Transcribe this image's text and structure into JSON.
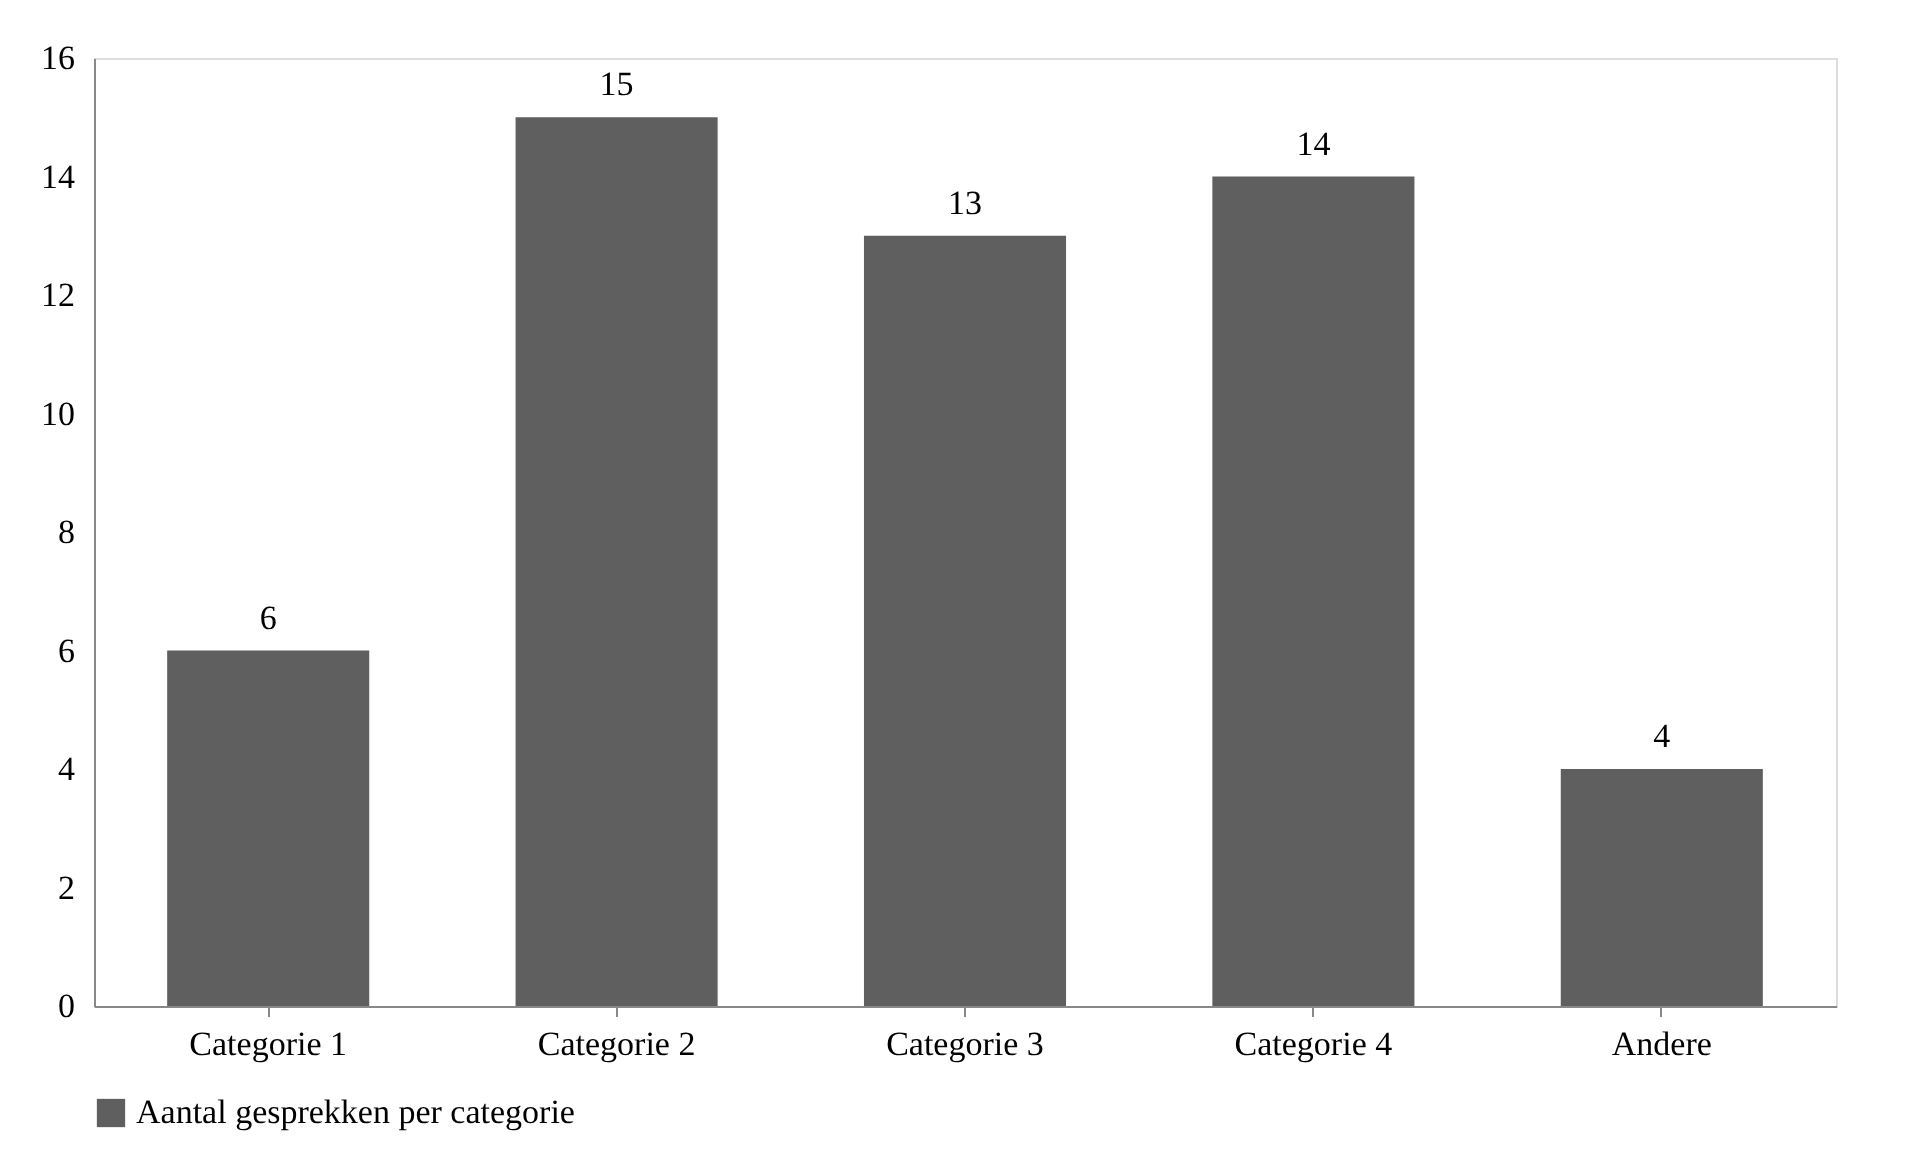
{
  "chart_data": {
    "type": "bar",
    "categories": [
      "Categorie 1",
      "Categorie 2",
      "Categorie 3",
      "Categorie 4",
      "Andere"
    ],
    "series": [
      {
        "name": "Aantal gesprekken per categorie",
        "color": "#5f5f5f",
        "values": [
          6,
          15,
          13,
          14,
          4
        ]
      }
    ],
    "ylim": [
      0,
      16
    ],
    "yticks": [
      0,
      2,
      4,
      6,
      8,
      10,
      12,
      14,
      16
    ],
    "grid": false,
    "legend": "bottom",
    "data_labels": true
  }
}
